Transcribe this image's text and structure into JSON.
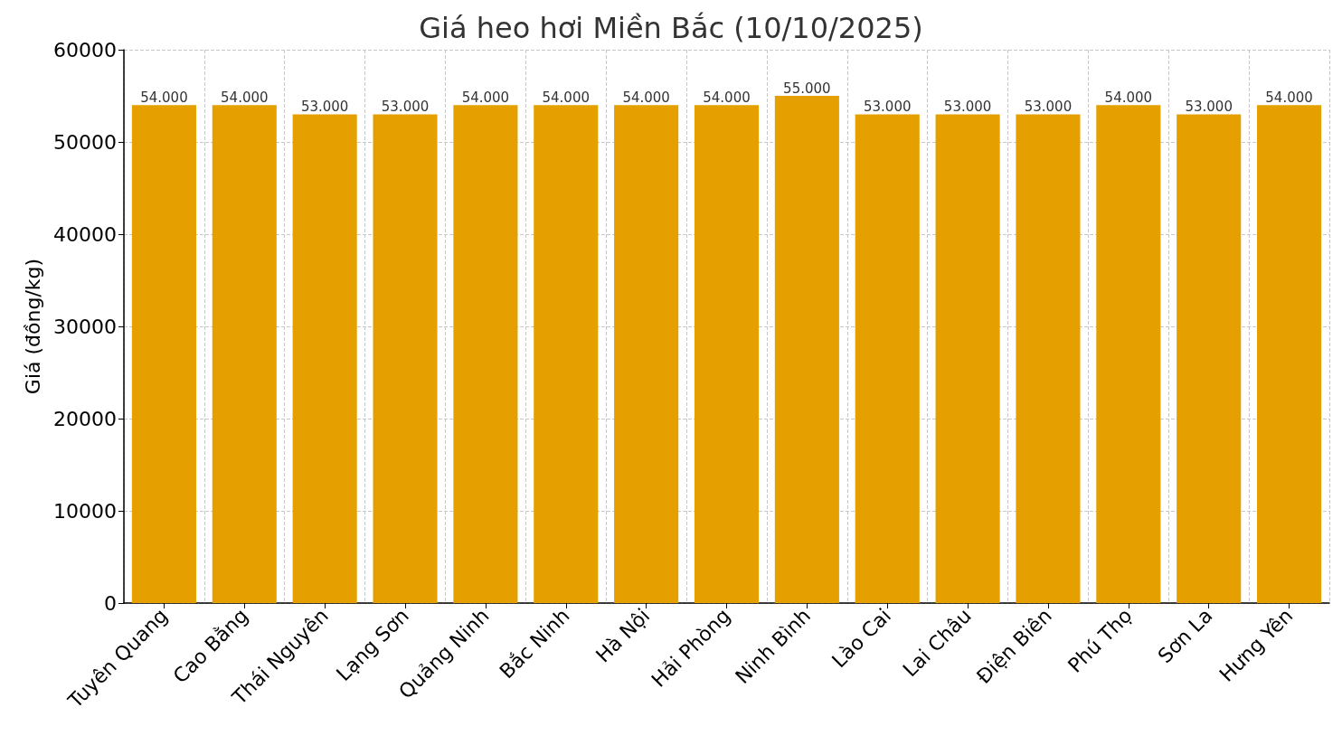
{
  "chart_data": {
    "type": "bar",
    "title": "Giá heo hơi Miền Bắc (10/10/2025)",
    "ylabel": "Giá (đồng/kg)",
    "categories": [
      "Tuyên Quang",
      "Cao Bằng",
      "Thái Nguyên",
      "Lạng Sơn",
      "Quảng Ninh",
      "Bắc Ninh",
      "Hà Nội",
      "Hải Phòng",
      "Ninh Bình",
      "Lào Cai",
      "Lai Châu",
      "Điện Biên",
      "Phú Thọ",
      "Sơn La",
      "Hưng Yên"
    ],
    "values": [
      54000,
      54000,
      53000,
      53000,
      54000,
      54000,
      54000,
      54000,
      55000,
      53000,
      53000,
      53000,
      54000,
      53000,
      54000
    ],
    "value_labels": [
      "54.000",
      "54.000",
      "53.000",
      "53.000",
      "54.000",
      "54.000",
      "54.000",
      "54.000",
      "55.000",
      "53.000",
      "53.000",
      "53.000",
      "54.000",
      "53.000",
      "54.000"
    ],
    "color": "#e5a000",
    "ylim": [
      0,
      60000
    ],
    "yticks": [
      0,
      10000,
      20000,
      30000,
      40000,
      50000,
      60000
    ],
    "grid": true
  }
}
